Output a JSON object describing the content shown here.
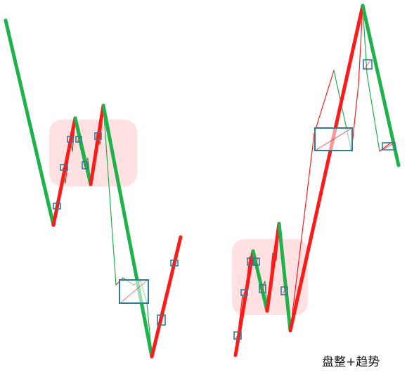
{
  "caption": "盘整+趋势",
  "colors": {
    "up": "#ff1a1a",
    "down": "#1db34a",
    "zone_fill": "#ffdede",
    "box_stroke": "#2e7d9a"
  },
  "chart_data": {
    "type": "line",
    "title": "",
    "xlabel": "",
    "ylabel": "",
    "grid": false,
    "legend": "none",
    "panels": [
      {
        "name": "left",
        "series": [
          {
            "name": "",
            "level": "segment",
            "x": [
              8,
              76,
              107,
              129,
              147,
              216,
              257
            ],
            "y": [
              29,
              320,
              168,
              262,
              150,
              507,
              337
            ]
          },
          {
            "name": "",
            "level": "sub",
            "x": [
              76,
              90,
              93,
              100,
              103,
              107,
              112,
              120,
              125,
              129,
              138,
              142,
              147
            ],
            "y": [
              320,
              245,
              260,
              200,
              215,
              168,
              200,
              235,
              225,
              262,
              190,
              205,
              150
            ]
          },
          {
            "name": "",
            "level": "sub",
            "x": [
              147,
              165,
              175,
              190,
              200,
              209,
              216,
              230,
              240,
              257
            ],
            "y": [
              150,
              405,
              395,
              405,
              400,
              430,
              507,
              455,
              400,
              337
            ]
          }
        ],
        "consolidation_zone": {
          "x": [
            70,
            195
          ],
          "y": [
            170,
            265
          ]
        },
        "pivot_boxes": [
          {
            "x": [
              76,
              86
            ],
            "y": [
              289,
              297
            ]
          },
          {
            "x": [
              86,
              96
            ],
            "y": [
              234,
              242
            ]
          },
          {
            "x": [
              96,
              104
            ],
            "y": [
              194,
              202
            ]
          },
          {
            "x": [
              108,
              116
            ],
            "y": [
              194,
              202
            ]
          },
          {
            "x": [
              117,
              125
            ],
            "y": [
              230,
              240
            ]
          },
          {
            "x": [
              135,
              144
            ],
            "y": [
              189,
              198
            ]
          },
          {
            "x": [
              170,
              211
            ],
            "y": [
              398,
              431
            ]
          },
          {
            "x": [
              224,
              235
            ],
            "y": [
              448,
              462
            ]
          },
          {
            "x": [
              243,
              253
            ],
            "y": [
              370,
              378
            ]
          }
        ]
      },
      {
        "name": "right",
        "series": [
          {
            "name": "",
            "level": "segment",
            "x": [
              335,
              360,
              380,
              397,
              413,
              516,
              567
            ],
            "y": [
              505,
              357,
              442,
              318,
              470,
              8,
              235
            ]
          },
          {
            "name": "",
            "level": "sub",
            "x": [
              335,
              345,
              348,
              355,
              359,
              360,
              365,
              372,
              377,
              380,
              388,
              393,
              397
            ],
            "y": [
              505,
              420,
              430,
              365,
              375,
              357,
              380,
              410,
              400,
              442,
              360,
              370,
              318
            ]
          },
          {
            "name": "",
            "level": "sub",
            "x": [
              413,
              447,
              475,
              500,
              510,
              516,
              522,
              540,
              560,
              567
            ],
            "y": [
              470,
              190,
              100,
              215,
              120,
              8,
              105,
              215,
              200,
              235
            ]
          }
        ],
        "consolidation_zone": {
          "x": [
            330,
            438
          ],
          "y": [
            340,
            448
          ]
        },
        "pivot_boxes": [
          {
            "x": [
              333,
              343
            ],
            "y": [
              472,
              482
            ]
          },
          {
            "x": [
              343,
              352
            ],
            "y": [
              412,
              420
            ]
          },
          {
            "x": [
              352,
              360
            ],
            "y": [
              367,
              377
            ]
          },
          {
            "x": [
              361,
              369
            ],
            "y": [
              367,
              377
            ]
          },
          {
            "x": [
              369,
              378
            ],
            "y": [
              405,
              416
            ]
          },
          {
            "x": [
              400,
              409
            ],
            "y": [
              408,
              419
            ]
          },
          {
            "x": [
              448,
              501
            ],
            "y": [
              182,
              214
            ]
          },
          {
            "x": [
              517,
              529
            ],
            "y": [
              85,
              98
            ]
          },
          {
            "x": [
              544,
              562
            ],
            "y": [
              203,
              213
            ]
          }
        ]
      }
    ]
  }
}
